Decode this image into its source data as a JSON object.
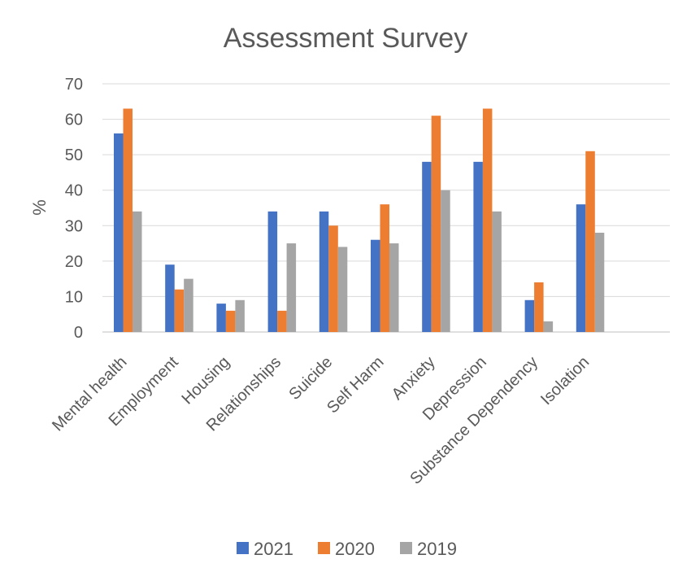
{
  "chart_data": {
    "type": "bar",
    "title": "Assessment Survey",
    "xlabel": "",
    "ylabel": "%",
    "ylim": [
      0,
      70
    ],
    "yticks": [
      0,
      10,
      20,
      30,
      40,
      50,
      60,
      70
    ],
    "grid": true,
    "legend_position": "bottom",
    "categories": [
      "Mental health",
      "Employment",
      "Housing",
      "Relationships",
      "Suicide",
      "Self Harm",
      "Anxiety",
      "Depression",
      "Substance Dependency",
      "Isolation"
    ],
    "series": [
      {
        "name": "2021",
        "color": "#4472c4",
        "values": [
          56,
          19,
          8,
          34,
          34,
          26,
          48,
          48,
          9,
          36
        ]
      },
      {
        "name": "2020",
        "color": "#ed7d31",
        "values": [
          63,
          12,
          6,
          6,
          30,
          36,
          61,
          63,
          14,
          51
        ]
      },
      {
        "name": "2019",
        "color": "#a5a5a5",
        "values": [
          34,
          15,
          9,
          25,
          24,
          25,
          40,
          34,
          3,
          28
        ]
      }
    ]
  }
}
